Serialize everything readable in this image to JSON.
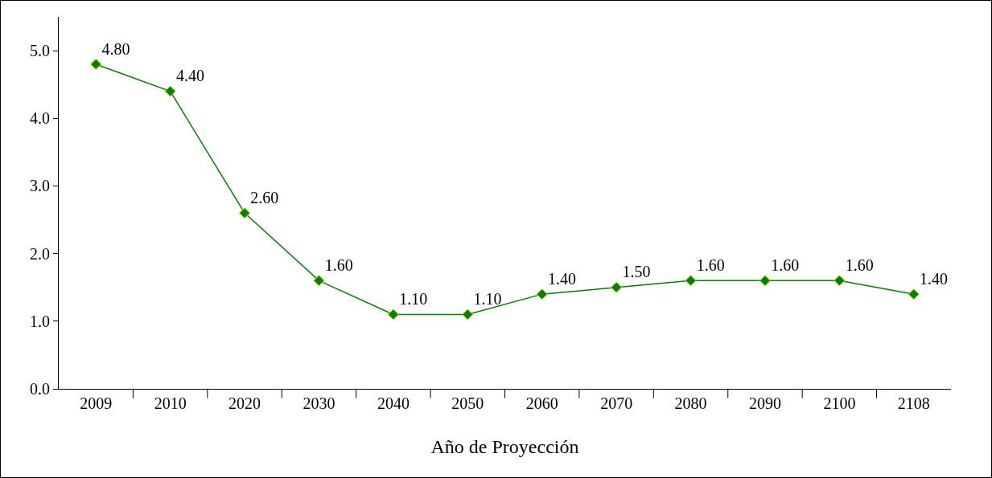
{
  "chart_data": {
    "type": "line",
    "xlabel": "Año de Proyección",
    "categories": [
      "2009",
      "2010",
      "2020",
      "2030",
      "2040",
      "2050",
      "2060",
      "2070",
      "2080",
      "2090",
      "2100",
      "2108"
    ],
    "series": [
      {
        "color": "#008000",
        "values": [
          4.8,
          4.4,
          2.6,
          1.6,
          1.1,
          1.1,
          1.4,
          1.5,
          1.6,
          1.6,
          1.6,
          1.4
        ],
        "value_labels": [
          "4.80",
          "4.40",
          "2.60",
          "1.60",
          "1.10",
          "1.10",
          "1.40",
          "1.50",
          "1.60",
          "1.60",
          "1.60",
          "1.40"
        ]
      }
    ],
    "ylim": [
      0,
      5.5
    ],
    "yticks": [
      {
        "value": 0,
        "label": "0.0"
      },
      {
        "value": 1,
        "label": "1.0"
      },
      {
        "value": 2,
        "label": "2.0"
      },
      {
        "value": 3,
        "label": "3.0"
      },
      {
        "value": 4,
        "label": "4.0"
      },
      {
        "value": 5,
        "label": "5.0"
      }
    ],
    "marker": "diamond",
    "line_style": "solid",
    "grid": false,
    "legend": false
  }
}
